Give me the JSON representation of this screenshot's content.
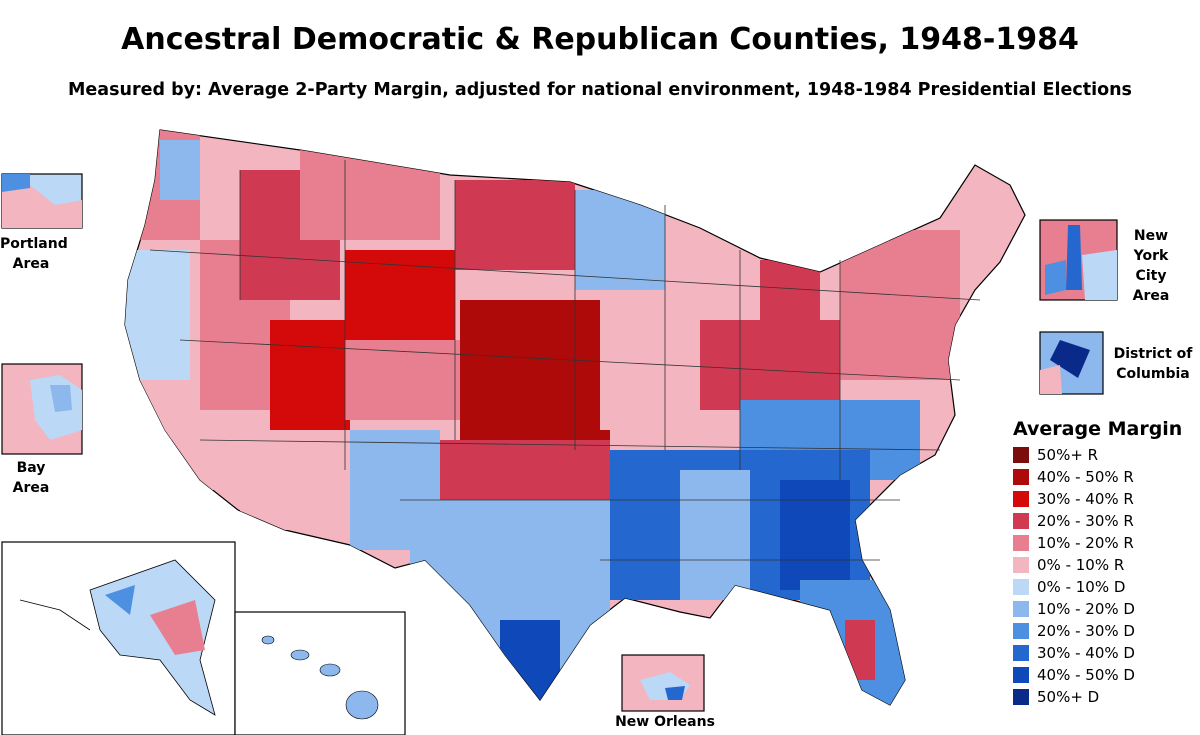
{
  "title": "Ancestral Democratic & Republican Counties, 1948-1984",
  "subtitle": "Measured by: Average 2-Party Margin, adjusted for national environment, 1948-1984 Presidential Elections",
  "insets": {
    "portland": "Portland Area",
    "bay": "Bay Area",
    "nyc": "New York City Area",
    "dc": "District of Columbia",
    "new_orleans": "New Orleans"
  },
  "legend": {
    "title": "Average Margin",
    "items": [
      {
        "label": "50%+ R",
        "color": "#7b0d0d"
      },
      {
        "label": "40% - 50% R",
        "color": "#ae0a0a"
      },
      {
        "label": "30% - 40% R",
        "color": "#d40a0a"
      },
      {
        "label": "20% - 30% R",
        "color": "#cf3a52"
      },
      {
        "label": "10% - 20% R",
        "color": "#e87f90"
      },
      {
        "label": "0% - 10% R",
        "color": "#f3b5c0"
      },
      {
        "label": "0% - 10% D",
        "color": "#bcd8f7"
      },
      {
        "label": "10% - 20% D",
        "color": "#8cb8ee"
      },
      {
        "label": "20% - 30% D",
        "color": "#4d8fe0"
      },
      {
        "label": "30% - 40% D",
        "color": "#2367cf"
      },
      {
        "label": "40% - 50% D",
        "color": "#0f48b8"
      },
      {
        "label": "50%+ D",
        "color": "#0a2a8a"
      }
    ]
  }
}
